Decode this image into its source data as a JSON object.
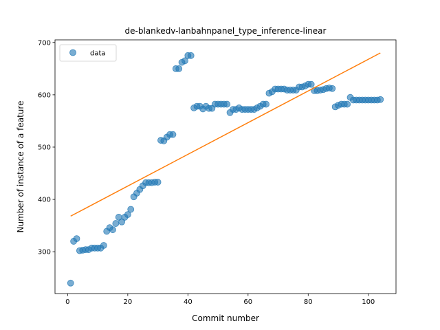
{
  "chart_data": {
    "type": "scatter",
    "title": "de-blankedv-lanbahnpanel_type_inference-linear",
    "xlabel": "Commit number",
    "ylabel": "Number of instance of a feature",
    "xlim": [
      -4.2,
      109.2
    ],
    "ylim": [
      220,
      705
    ],
    "xticks": [
      0,
      20,
      40,
      60,
      80,
      100
    ],
    "yticks": [
      300,
      400,
      500,
      600,
      700
    ],
    "grid": false,
    "legend": {
      "position": "upper-left",
      "entries": [
        "data"
      ]
    },
    "series": [
      {
        "name": "data",
        "kind": "scatter",
        "color": "#1f77b4",
        "x": [
          1,
          2,
          3,
          4,
          5,
          6,
          7,
          8,
          9,
          10,
          11,
          12,
          13,
          14,
          15,
          16,
          17,
          18,
          19,
          20,
          21,
          22,
          23,
          24,
          25,
          26,
          27,
          28,
          29,
          30,
          31,
          32,
          33,
          34,
          35,
          36,
          37,
          38,
          39,
          40,
          41,
          42,
          43,
          44,
          45,
          46,
          47,
          48,
          49,
          50,
          51,
          52,
          53,
          54,
          55,
          56,
          57,
          58,
          59,
          60,
          61,
          62,
          63,
          64,
          65,
          66,
          67,
          68,
          69,
          70,
          71,
          72,
          73,
          74,
          75,
          76,
          77,
          78,
          79,
          80,
          81,
          82,
          83,
          84,
          85,
          86,
          87,
          88,
          89,
          90,
          91,
          92,
          93,
          94,
          95,
          96,
          97,
          98,
          99,
          100,
          101,
          102,
          103,
          104
        ],
        "y": [
          240,
          320,
          325,
          302,
          303,
          304,
          304,
          307,
          307,
          307,
          307,
          312,
          339,
          346,
          342,
          354,
          366,
          357,
          366,
          371,
          381,
          405,
          412,
          419,
          426,
          432,
          432,
          432,
          433,
          433,
          513,
          512,
          519,
          524,
          524,
          650,
          650,
          662,
          665,
          675,
          675,
          575,
          578,
          578,
          573,
          578,
          574,
          574,
          582,
          582,
          582,
          582,
          582,
          566,
          572,
          572,
          575,
          572,
          572,
          572,
          572,
          572,
          575,
          578,
          582,
          582,
          603,
          606,
          611,
          611,
          611,
          611,
          609,
          609,
          609,
          609,
          615,
          615,
          617,
          620,
          620,
          608,
          608,
          609,
          610,
          612,
          613,
          612,
          577,
          580,
          582,
          582,
          582,
          595,
          590,
          590,
          590,
          590,
          590,
          590,
          590,
          590,
          590,
          591
        ]
      },
      {
        "name": "",
        "kind": "line",
        "color": "#ff7f0e",
        "x": [
          1,
          104
        ],
        "y": [
          368,
          680
        ]
      }
    ]
  }
}
